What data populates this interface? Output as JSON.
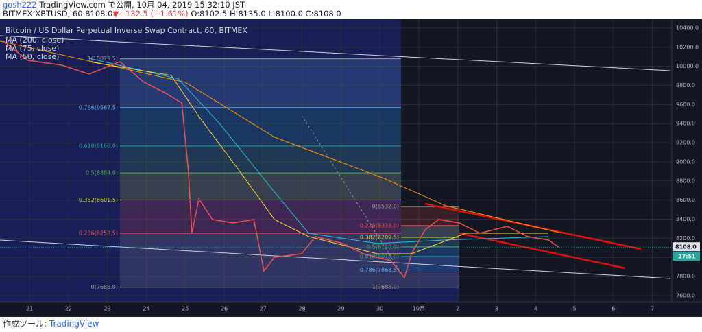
{
  "header": {
    "user": "gosh222",
    "published": " TradingView.com で公開, 10月 04, 2019 15:32:10 JST",
    "symbol": "BITMEX:XBTUSD, 60 8108.0",
    "arrow": "▼",
    "change": "−132.5 (−1.61%)",
    "ohlc": " O:8102.5 H:8135.0 L:8100.0 C:8108.0"
  },
  "footer": {
    "made_with": "作成ツール:",
    "brand": "TradingView"
  },
  "chart_data": {
    "type": "line",
    "title": "Bitcoin / US Dollar Perpetual Inverse Swap Contract, 60, BITMEX",
    "xlim": [
      -0.76,
      16.5
    ],
    "ylim": [
      7535,
      10493
    ],
    "xticks": [
      {
        "value": 0,
        "label": "21"
      },
      {
        "value": 1,
        "label": "22"
      },
      {
        "value": 2,
        "label": "23"
      },
      {
        "value": 3,
        "label": "24"
      },
      {
        "value": 4,
        "label": "25"
      },
      {
        "value": 5,
        "label": "26"
      },
      {
        "value": 6,
        "label": "27"
      },
      {
        "value": 7,
        "label": "28"
      },
      {
        "value": 8,
        "label": "29"
      },
      {
        "value": 9,
        "label": "30"
      },
      {
        "value": 10,
        "label": "10月"
      },
      {
        "value": 11,
        "label": "2"
      },
      {
        "value": 12,
        "label": "3"
      },
      {
        "value": 13,
        "label": "4"
      },
      {
        "value": 14,
        "label": "5"
      },
      {
        "value": 15,
        "label": "6"
      },
      {
        "value": 16,
        "label": "7"
      }
    ],
    "yticks": [
      {
        "value": 7600,
        "label": "7600.0"
      },
      {
        "value": 7800,
        "label": "7800.0"
      },
      {
        "value": 8000,
        "label": "8000.0"
      },
      {
        "value": 8200,
        "label": "8200.0"
      },
      {
        "value": 8400,
        "label": "8400.0"
      },
      {
        "value": 8600,
        "label": "8600.0"
      },
      {
        "value": 8800,
        "label": "8800.0"
      },
      {
        "value": 9000,
        "label": "9000.0"
      },
      {
        "value": 9200,
        "label": "9200.0"
      },
      {
        "value": 9400,
        "label": "9400.0"
      },
      {
        "value": 9600,
        "label": "9600.0"
      },
      {
        "value": 9800,
        "label": "9800.0"
      },
      {
        "value": 10000,
        "label": "10000.0"
      },
      {
        "value": 10200,
        "label": "10200.0"
      },
      {
        "value": 10400,
        "label": "10400.0"
      }
    ],
    "grid": true,
    "series": [
      {
        "name": "MA (200, close)",
        "color": "#ff9800",
        "x": [
          -0.76,
          4.0,
          6.29,
          9.1,
          10.69,
          13.68
        ],
        "values": [
          10264,
          9833,
          9259,
          8828,
          8541,
          8253
        ]
      },
      {
        "name": "MA (75, close)",
        "color": "#26c6da",
        "x": [
          1.53,
          3.82,
          4.88,
          6.29,
          7.17,
          8.93,
          10.69,
          13.33
        ],
        "values": [
          10084,
          9869,
          9402,
          8684,
          8253,
          8146,
          8182,
          8218
        ]
      },
      {
        "name": "MA (50, close)",
        "color": "#fdd835",
        "x": [
          1.53,
          3.64,
          4.35,
          5.4,
          6.29,
          7.17,
          8.93,
          9.81,
          11.21,
          13.33
        ],
        "values": [
          10048,
          9905,
          9474,
          8900,
          8397,
          8218,
          8038,
          8038,
          8253,
          8253
        ]
      }
    ],
    "price": {
      "color": "#ef5350",
      "x": [
        -0.67,
        -0.05,
        0.83,
        1.53,
        2.32,
        2.94,
        3.47,
        3.91,
        4.08,
        4.17,
        4.35,
        4.7,
        5.23,
        5.76,
        6.02,
        6.29,
        6.99,
        7.34,
        8.05,
        8.57,
        9.28,
        9.63,
        9.81,
        10.16,
        10.51,
        11.04,
        11.57,
        12.27,
        12.8,
        13.33,
        13.59
      ],
      "values": [
        10264,
        10063,
        10012,
        9919,
        10048,
        9833,
        9725,
        9617,
        8899,
        8253,
        8612,
        8397,
        8361,
        8397,
        7859,
        8002,
        8038,
        8218,
        8146,
        8038,
        7966,
        7787,
        8038,
        8289,
        8397,
        8361,
        8253,
        8325,
        8218,
        8182,
        8108
      ]
    },
    "last_price": {
      "value": 8108,
      "label": "8108.0",
      "countdown": "27:51"
    },
    "fib_left": [
      {
        "price": 10079.5,
        "label": "1(10079.5)",
        "color": "#9e9e9e"
      },
      {
        "price": 9567.5,
        "label": "0.786(9567.5)",
        "color": "#64b5f6"
      },
      {
        "price": 9166.0,
        "label": "0.618(9166.0)",
        "color": "#26a69a"
      },
      {
        "price": 8884.0,
        "label": "0.5(8884.0)",
        "color": "#4caf50"
      },
      {
        "price": 8601.5,
        "label": "0.382(8601.5)",
        "color": "#cddc39"
      },
      {
        "price": 8252.5,
        "label": "0.236(8252.5)",
        "color": "#ef5350"
      },
      {
        "price": 7688.0,
        "label": "0(7688.0)",
        "color": "#9e9e9e"
      }
    ],
    "fib_right": [
      {
        "price": 8532.0,
        "label": "0(8532.0)",
        "color": "#9e9e9e"
      },
      {
        "price": 8333.0,
        "label": "0.236(8333.0)",
        "color": "#ef5350"
      },
      {
        "price": 8209.5,
        "label": "0.382(8209.5)",
        "color": "#cddc39"
      },
      {
        "price": 8110.0,
        "label": "0.5(8110.0)",
        "color": "#4caf50"
      },
      {
        "price": 8010.0,
        "label": "0.618(8010.0)",
        "color": "#26a69a"
      },
      {
        "price": 7868.5,
        "label": "0.786(7868.5)",
        "color": "#64b5f6"
      },
      {
        "price": 7688.0,
        "label": "1(7688.0)",
        "color": "#9e9e9e"
      }
    ]
  }
}
